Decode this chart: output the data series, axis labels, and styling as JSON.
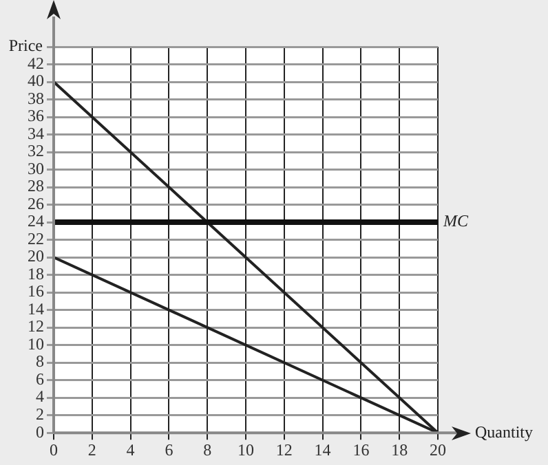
{
  "chart_data": {
    "type": "line",
    "xlabel": "Quantity",
    "ylabel": "Price",
    "x": [
      0,
      20
    ],
    "xlim": [
      0,
      20
    ],
    "xticks": [
      0,
      2,
      4,
      6,
      8,
      10,
      12,
      14,
      16,
      18,
      20
    ],
    "ylim": [
      0,
      44
    ],
    "yticks": [
      0,
      2,
      4,
      6,
      8,
      10,
      12,
      14,
      16,
      18,
      20,
      22,
      24,
      26,
      28,
      30,
      32,
      34,
      36,
      38,
      40,
      42,
      {
        "value": 44,
        "label": null
      }
    ],
    "grid": true,
    "legend": false,
    "marker": "none",
    "line_style": "solid",
    "series": [
      {
        "color": "#222222",
        "values": [
          40,
          0
        ]
      },
      {
        "color": "#222222",
        "values": [
          20,
          0
        ]
      }
    ],
    "ref_lines": [
      {
        "axis": "y",
        "value": 24,
        "label": "MC",
        "color": "#111111"
      }
    ]
  }
}
